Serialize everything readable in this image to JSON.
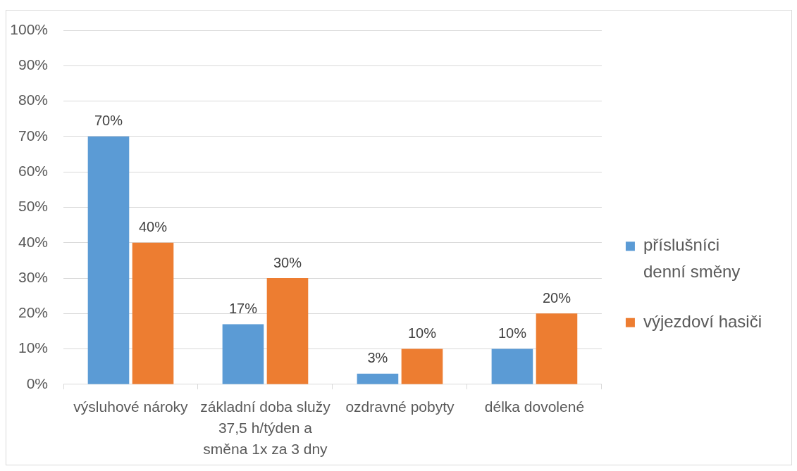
{
  "chart_data": {
    "type": "bar",
    "categories": [
      "výsluhové nároky",
      "základní doba služy 37,5 h/týden a směna 1x za 3 dny",
      "ozdravné pobyty",
      "délka dovolené"
    ],
    "series": [
      {
        "name": "příslušníci denní směny",
        "color": "#5b9bd5",
        "values": [
          70,
          17,
          3,
          10
        ],
        "value_labels": [
          "70%",
          "17%",
          "3%",
          "10%"
        ]
      },
      {
        "name": "výjezdoví hasiči",
        "color": "#ed7d31",
        "values": [
          40,
          30,
          10,
          20
        ],
        "value_labels": [
          "40%",
          "30%",
          "10%",
          "20%"
        ]
      }
    ],
    "ylim": [
      0,
      100
    ],
    "yticks": [
      {
        "value": 0,
        "label": "0%"
      },
      {
        "value": 10,
        "label": "10%"
      },
      {
        "value": 20,
        "label": "20%"
      },
      {
        "value": 30,
        "label": "30%"
      },
      {
        "value": 40,
        "label": "40%"
      },
      {
        "value": 50,
        "label": "50%"
      },
      {
        "value": 60,
        "label": "60%"
      },
      {
        "value": 70,
        "label": "70%"
      },
      {
        "value": 80,
        "label": "80%"
      },
      {
        "value": 90,
        "label": "90%"
      },
      {
        "value": 100,
        "label": "100%"
      }
    ],
    "grid": "y",
    "legend": "right"
  }
}
